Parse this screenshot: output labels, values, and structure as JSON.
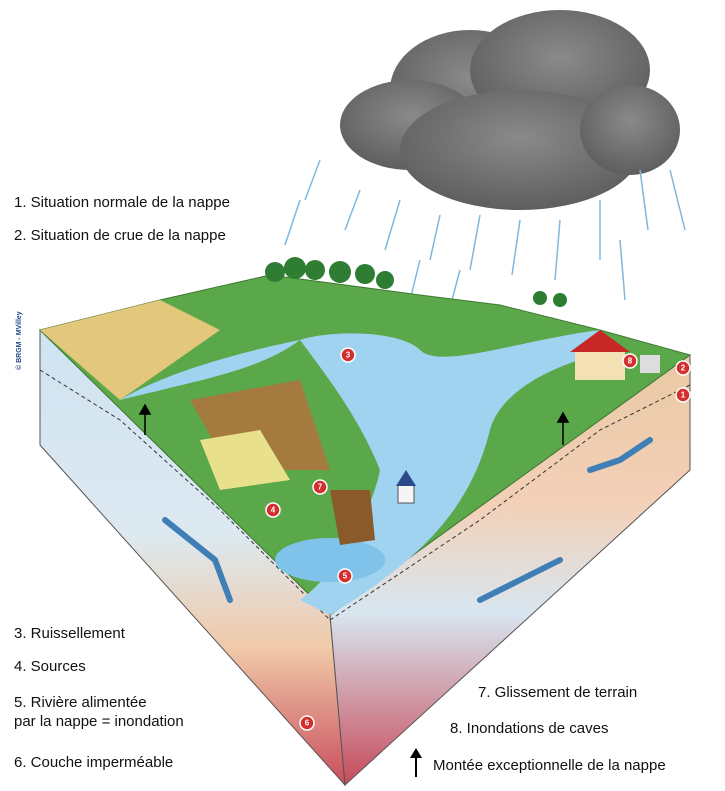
{
  "legend": {
    "items": [
      "1. Situation normale de la nappe",
      "2. Situation de crue de la nappe",
      "3. Ruissellement",
      "4. Sources",
      "5. Rivière alimentée",
      "par la nappe = inondation",
      "6. Couche imperméable",
      "7. Glissement de terrain",
      "8. Inondations de caves"
    ],
    "arrow_note": "Montée exceptionnelle de la nappe"
  },
  "credit": "© BRGM - MVilley",
  "markers": [
    "1",
    "2",
    "3",
    "4",
    "5",
    "6",
    "7",
    "8"
  ]
}
